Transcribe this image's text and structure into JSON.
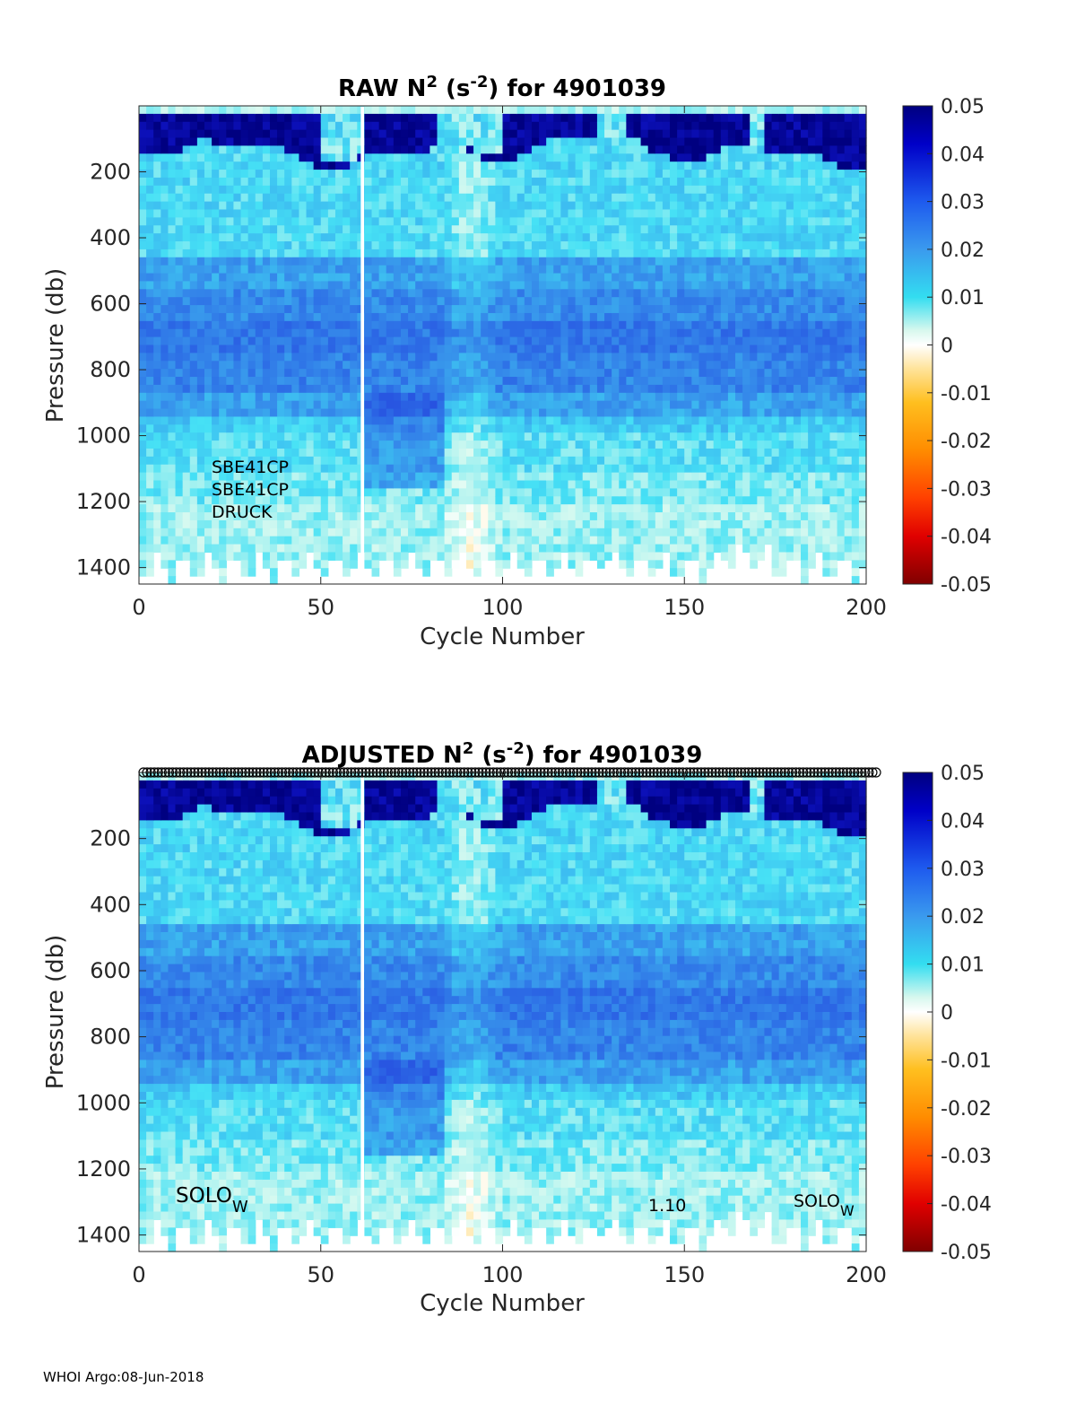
{
  "chart_data": [
    {
      "type": "heatmap",
      "title": {
        "prefix": "RAW N",
        "sup1": "2",
        "mid": " (s",
        "sup2": "-2",
        "suffix": ") for 4901039"
      },
      "xlabel": "Cycle Number",
      "ylabel": "Pressure (db)",
      "xlim": [
        0,
        200
      ],
      "ylim": [
        1450,
        0
      ],
      "xticks": [
        "0",
        "50",
        "100",
        "150",
        "200"
      ],
      "xtick_values": [
        0,
        50,
        100,
        150,
        200
      ],
      "yticks": [
        "200",
        "400",
        "600",
        "800",
        "1000",
        "1200",
        "1400"
      ],
      "ytick_values": [
        200,
        400,
        600,
        800,
        1000,
        1200,
        1400
      ],
      "colorbar": {
        "colormap": "jet-diverging",
        "clim": [
          -0.05,
          0.05
        ],
        "ticks": [
          "0.05",
          "0.04",
          "0.03",
          "0.02",
          "0.01",
          "0",
          "-0.01",
          "-0.02",
          "-0.03",
          "-0.04",
          "-0.05"
        ],
        "tick_values": [
          0.05,
          0.04,
          0.03,
          0.02,
          0.01,
          0,
          -0.01,
          -0.02,
          -0.03,
          -0.04,
          -0.05
        ]
      },
      "gap_cycle": 61,
      "annotations": [
        "SBE41CP",
        "SBE41CP",
        "DRUCK"
      ]
    },
    {
      "type": "heatmap",
      "title": {
        "prefix": "ADJUSTED N",
        "sup1": "2",
        "mid": " (s",
        "sup2": "-2",
        "suffix": ") for 4901039"
      },
      "xlabel": "Cycle Number",
      "ylabel": "Pressure (db)",
      "xlim": [
        0,
        200
      ],
      "ylim": [
        1450,
        0
      ],
      "xticks": [
        "0",
        "50",
        "100",
        "150",
        "200"
      ],
      "xtick_values": [
        0,
        50,
        100,
        150,
        200
      ],
      "yticks": [
        "200",
        "400",
        "600",
        "800",
        "1000",
        "1200",
        "1400"
      ],
      "ytick_values": [
        200,
        400,
        600,
        800,
        1000,
        1200,
        1400
      ],
      "colorbar": {
        "colormap": "jet-diverging",
        "clim": [
          -0.05,
          0.05
        ],
        "ticks": [
          "0.05",
          "0.04",
          "0.03",
          "0.02",
          "0.01",
          "0",
          "-0.01",
          "-0.02",
          "-0.03",
          "-0.04",
          "-0.05"
        ],
        "tick_values": [
          0.05,
          0.04,
          0.03,
          0.02,
          0.01,
          0,
          -0.01,
          -0.02,
          -0.03,
          -0.04,
          -0.05
        ]
      },
      "gap_cycle": 61,
      "cycle_markers": {
        "shape": "circle",
        "count": 202,
        "color": "#000000"
      },
      "annotations": [
        {
          "base": "SOLO",
          "sub": "W"
        },
        {
          "text": "1.10"
        },
        {
          "base": "SOLO",
          "sub": "W"
        }
      ]
    }
  ],
  "footer": "WHOI Argo:08-Jun-2018"
}
